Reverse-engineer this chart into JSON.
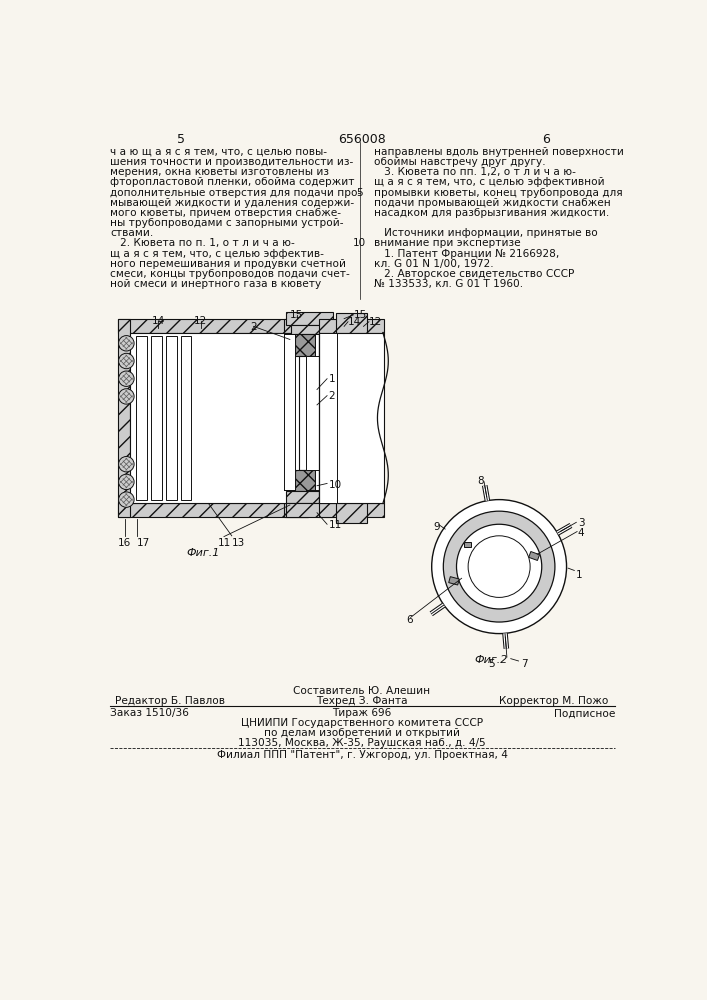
{
  "bg_color": "#f8f5ee",
  "page_number_left": "5",
  "page_number_center": "656008",
  "page_number_right": "6",
  "col1_text": [
    "ч а ю щ а я с я тем, что, с целью повы-",
    "шения точности и производительности из-",
    "мерения, окна кюветы изготовлены из",
    "фторопластовой пленки, обойма содержит",
    "дополнительные отверстия для подачи про-",
    "мывающей жидкости и удаления содержи-",
    "мого кюветы, причем отверстия снабже-",
    "ны трубопроводами с запорными устрой-",
    "ствами.",
    "   2. Кювета по п. 1, о т л и ч а ю-",
    "щ а я с я тем, что, с целью эффектив-",
    "ного перемешивания и продувки счетной",
    "смеси, концы трубопроводов подачи счет-",
    "ной смеси и инертного газа в кювету"
  ],
  "col2_text": [
    "направлены вдоль внутренней поверхности",
    "обоймы навстречу друг другу.",
    "   3. Кювета по пп. 1,2, о т л и ч а ю-",
    "щ а я с я тем, что, с целью эффективной",
    "промывки кюветы, конец трубопровода для",
    "подачи промывающей жидкости снабжен",
    "насадком для разбрызгивания жидкости.",
    "",
    "   Источники информации, принятые во",
    "внимание при экспертизе",
    "   1. Патент Франции № 2166928,",
    "кл. G 01 N 1/00, 1972.",
    "   2. Авторское свидетельство СССР",
    "№ 133533, кл. G 01 T 1960."
  ],
  "fig1_label": "Фиг.1",
  "fig2_label": "Фиг.2",
  "staff_line1": "Составитель Ю. Алешин",
  "staff_line2_left": "Редактор Б. Павлов",
  "staff_line2_mid": "Техред З. Фанта",
  "staff_line2_right": "Корректор М. Пожо",
  "staff_line3_left": "Заказ 1510/36",
  "staff_line3_mid": "Тираж 696",
  "staff_line3_right": "Подписное",
  "staff_line4": "ЦНИИПИ Государственного комитета СССР",
  "staff_line5": "по делам изобретений и открытий",
  "staff_line6": "113035, Москва, Ж-35, Раушская наб., д. 4/5",
  "staff_line7": "Филиал ППП \"Патент\", г. Ужгород, ул. Проектная, 4",
  "hatch_color": "#555555",
  "hatch_fill": "#cccccc",
  "cross_fill": "#999999",
  "line_color": "#111111"
}
